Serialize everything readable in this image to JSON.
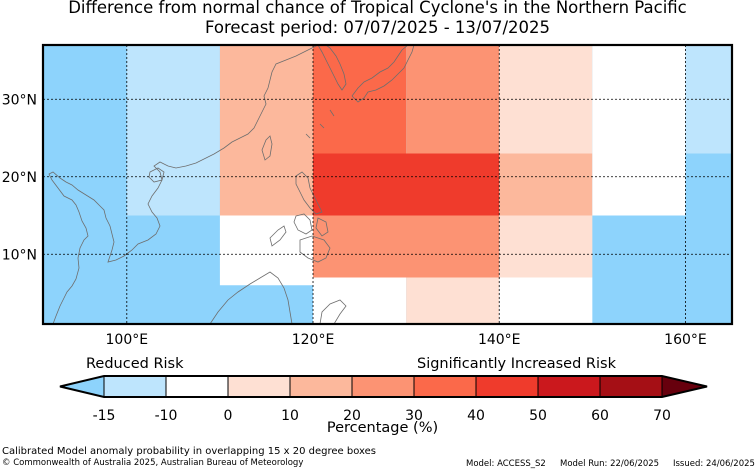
{
  "title": {
    "line1": "Difference from normal chance of Tropical Cyclone's in the Northern Pacific",
    "line2": "Forecast period: 07/07/2025 - 13/07/2025"
  },
  "map": {
    "lon_range": [
      91,
      165
    ],
    "lat_range": [
      1,
      37
    ],
    "lon_ticks": [
      {
        "value": 100,
        "label": "100°E"
      },
      {
        "value": 120,
        "label": "120°E"
      },
      {
        "value": 140,
        "label": "140°E"
      },
      {
        "value": 160,
        "label": "160°E"
      }
    ],
    "lat_ticks": [
      {
        "value": 10,
        "label": "10°N"
      },
      {
        "value": 20,
        "label": "20°N"
      },
      {
        "value": 30,
        "label": "30°N"
      }
    ],
    "background_color": "#8dd3fc",
    "cells": [
      {
        "lon0": 100,
        "lon1": 110,
        "lat0": 15,
        "lat1": 37,
        "bin": "-15 to -10",
        "color": "#bee5fd"
      },
      {
        "lon0": 110,
        "lon1": 120,
        "lat0": 15,
        "lat1": 37,
        "bin": "10 to 20",
        "color": "#fcb89c"
      },
      {
        "lon0": 110,
        "lon1": 120,
        "lat0": 6,
        "lat1": 15,
        "bin": "-10 to 0",
        "color": "#ffffff"
      },
      {
        "lon0": 120,
        "lon1": 130,
        "lat0": 23,
        "lat1": 37,
        "bin": "30 to 40",
        "color": "#fb694a"
      },
      {
        "lon0": 130,
        "lon1": 140,
        "lat0": 23,
        "lat1": 37,
        "bin": "20 to 30",
        "color": "#fc9373"
      },
      {
        "lon0": 120,
        "lon1": 140,
        "lat0": 15,
        "lat1": 23,
        "bin": "40 to 50",
        "color": "#ef3b2c"
      },
      {
        "lon0": 120,
        "lon1": 140,
        "lat0": 7,
        "lat1": 15,
        "bin": "20 to 30",
        "color": "#fc9373"
      },
      {
        "lon0": 120,
        "lon1": 130,
        "lat0": 1,
        "lat1": 7,
        "bin": "-10 to 0",
        "color": "#ffffff"
      },
      {
        "lon0": 130,
        "lon1": 140,
        "lat0": 1,
        "lat1": 7,
        "bin": "0 to 10",
        "color": "#fee0d3"
      },
      {
        "lon0": 140,
        "lon1": 150,
        "lat0": 23,
        "lat1": 37,
        "bin": "0 to 10",
        "color": "#fee0d3"
      },
      {
        "lon0": 140,
        "lon1": 150,
        "lat0": 15,
        "lat1": 23,
        "bin": "10 to 20",
        "color": "#fcb89c"
      },
      {
        "lon0": 140,
        "lon1": 150,
        "lat0": 7,
        "lat1": 15,
        "bin": "0 to 10",
        "color": "#fee0d3"
      },
      {
        "lon0": 140,
        "lon1": 150,
        "lat0": 1,
        "lat1": 7,
        "bin": "-10 to 0",
        "color": "#ffffff"
      },
      {
        "lon0": 150,
        "lon1": 160,
        "lat0": 15,
        "lat1": 37,
        "bin": "-10 to 0",
        "color": "#ffffff"
      },
      {
        "lon0": 160,
        "lon1": 170,
        "lat0": 23,
        "lat1": 37,
        "bin": "-15 to -10",
        "color": "#bee5fd"
      }
    ]
  },
  "colorbar": {
    "levels": [
      -15,
      -10,
      0,
      10,
      20,
      30,
      40,
      50,
      60,
      70
    ],
    "colors": [
      "#bee5fd",
      "#ffffff",
      "#fee0d3",
      "#fcb89c",
      "#fc9373",
      "#fb694a",
      "#ef3b2c",
      "#cb181d",
      "#a50f15"
    ],
    "under_color": "#8dd3fc",
    "over_color": "#67000d",
    "label": "Percentage (%)",
    "reduced_label": "Reduced Risk",
    "increased_label": "Significantly Increased Risk"
  },
  "footer": {
    "description": "Calibrated Model anomaly probability in overlapping 15 x 20 degree boxes",
    "copyright": "© Commonwealth of Australia 2025, Australian Bureau of Meteorology",
    "model": "Model: ACCESS_S2",
    "model_run": "Model Run: 22/06/2025",
    "issued": "Issued: 24/06/2025"
  }
}
